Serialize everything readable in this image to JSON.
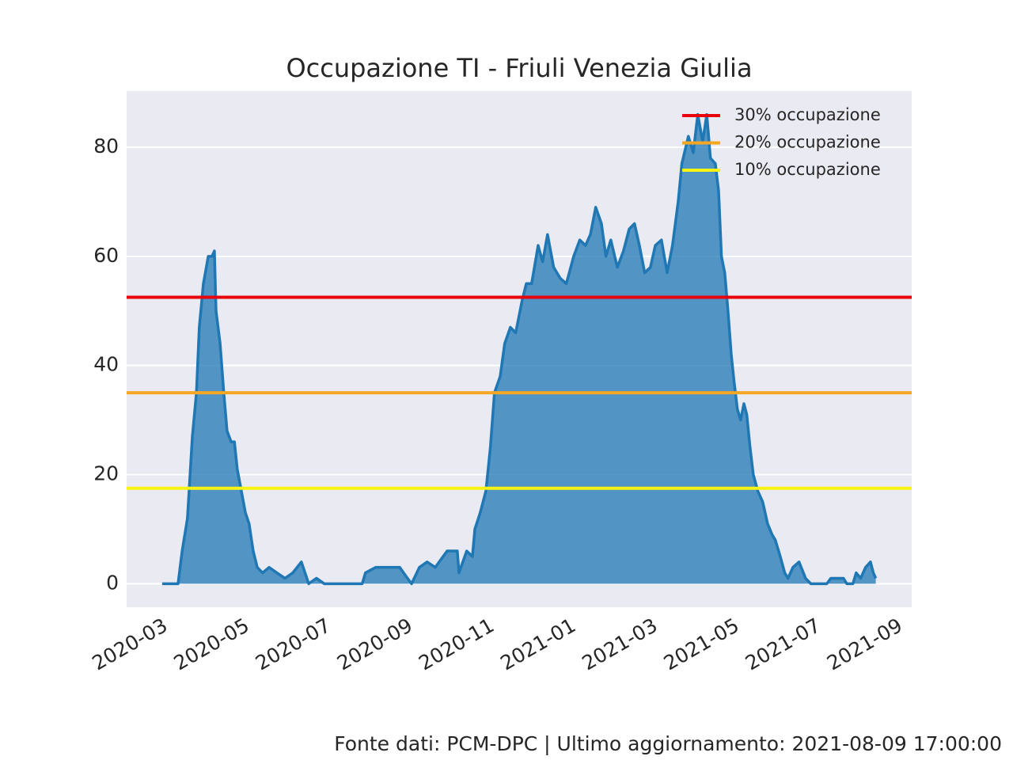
{
  "chart_data": {
    "type": "area",
    "title": "Occupazione TI - Friuli Venezia Giulia",
    "source": "Fonte dati: PCM-DPC | Ultimo aggiornamento: 2021-08-09 17:00:00",
    "color": "#1f77b4",
    "x": [
      -0.06,
      0.33,
      0.43,
      0.56,
      0.68,
      0.78,
      0.85,
      0.95,
      1.07,
      1.16,
      1.22,
      1.26,
      1.36,
      1.45,
      1.53,
      1.63,
      1.71,
      1.78,
      1.88,
      1.98,
      2.07,
      2.17,
      2.27,
      2.4,
      2.56,
      2.75,
      2.95,
      3.14,
      3.35,
      3.53,
      3.72,
      3.91,
      4.3,
      4.84,
      4.92,
      5.17,
      5.47,
      5.76,
      5.95,
      6.05,
      6.24,
      6.43,
      6.63,
      6.92,
      7.17,
      7.21,
      7.4,
      7.54,
      7.6,
      7.73,
      7.87,
      7.98,
      8.08,
      8.22,
      8.33,
      8.47,
      8.6,
      8.76,
      8.86,
      8.99,
      9.15,
      9.26,
      9.38,
      9.53,
      9.69,
      9.84,
      10.02,
      10.17,
      10.31,
      10.43,
      10.56,
      10.7,
      10.81,
      10.93,
      11.09,
      11.24,
      11.38,
      11.51,
      11.63,
      11.76,
      11.9,
      12.02,
      12.17,
      12.31,
      12.44,
      12.58,
      12.67,
      12.83,
      12.95,
      13.06,
      13.18,
      13.28,
      13.37,
      13.49,
      13.57,
      13.64,
      13.72,
      13.8,
      13.88,
      13.95,
      14.03,
      14.11,
      14.19,
      14.26,
      14.34,
      14.42,
      14.53,
      14.65,
      14.77,
      14.88,
      14.96,
      15.08,
      15.19,
      15.27,
      15.39,
      15.54,
      15.7,
      15.83,
      16.22,
      16.32,
      16.63,
      16.71,
      16.86,
      16.94,
      17.05,
      17.17,
      17.29,
      17.36,
      17.42
    ],
    "values": [
      0,
      0,
      6,
      12,
      27,
      35,
      47,
      55,
      60,
      60,
      61,
      50,
      44,
      35,
      28,
      26,
      26,
      21,
      17,
      13,
      11,
      6,
      3,
      2,
      3,
      2,
      1,
      2,
      4,
      0,
      1,
      0,
      0,
      0,
      2,
      3,
      3,
      3,
      1,
      0,
      3,
      4,
      3,
      6,
      6,
      2,
      6,
      5,
      10,
      13,
      17,
      25,
      35,
      38,
      44,
      47,
      46,
      52,
      55,
      55,
      62,
      59,
      64,
      58,
      56,
      55,
      60,
      63,
      62,
      64,
      69,
      66,
      60,
      63,
      58,
      61,
      65,
      66,
      62,
      57,
      58,
      62,
      63,
      57,
      62,
      70,
      77,
      82,
      79,
      86,
      81,
      86,
      78,
      77,
      72,
      60,
      57,
      50,
      42,
      37,
      32,
      30,
      33,
      31,
      25,
      20,
      17,
      15,
      11,
      9,
      8,
      5,
      2,
      1,
      3,
      4,
      1,
      0,
      0,
      1,
      1,
      0,
      0,
      2,
      1,
      3,
      4,
      2,
      1
    ],
    "hlines": [
      {
        "name": "30% occupazione",
        "value": 52.5,
        "color": "#e8000b"
      },
      {
        "name": "20% occupazione",
        "value": 35,
        "color": "#f5a623"
      },
      {
        "name": "10% occupazione",
        "value": 17.5,
        "color": "#f7f413"
      }
    ],
    "xlim": [
      -0.93,
      18.3
    ],
    "xticks": [
      {
        "value": 0,
        "label": "2020-03"
      },
      {
        "value": 2,
        "label": "2020-05"
      },
      {
        "value": 4,
        "label": "2020-07"
      },
      {
        "value": 6,
        "label": "2020-09"
      },
      {
        "value": 8,
        "label": "2020-11"
      },
      {
        "value": 10,
        "label": "2021-01"
      },
      {
        "value": 12,
        "label": "2021-03"
      },
      {
        "value": 14,
        "label": "2021-05"
      },
      {
        "value": 16,
        "label": "2021-07"
      },
      {
        "value": 18,
        "label": "2021-09"
      }
    ],
    "ylim": [
      -4.3,
      90.3
    ],
    "yticks": [
      0,
      20,
      40,
      60,
      80
    ],
    "grid": true,
    "legend": "upper right"
  }
}
